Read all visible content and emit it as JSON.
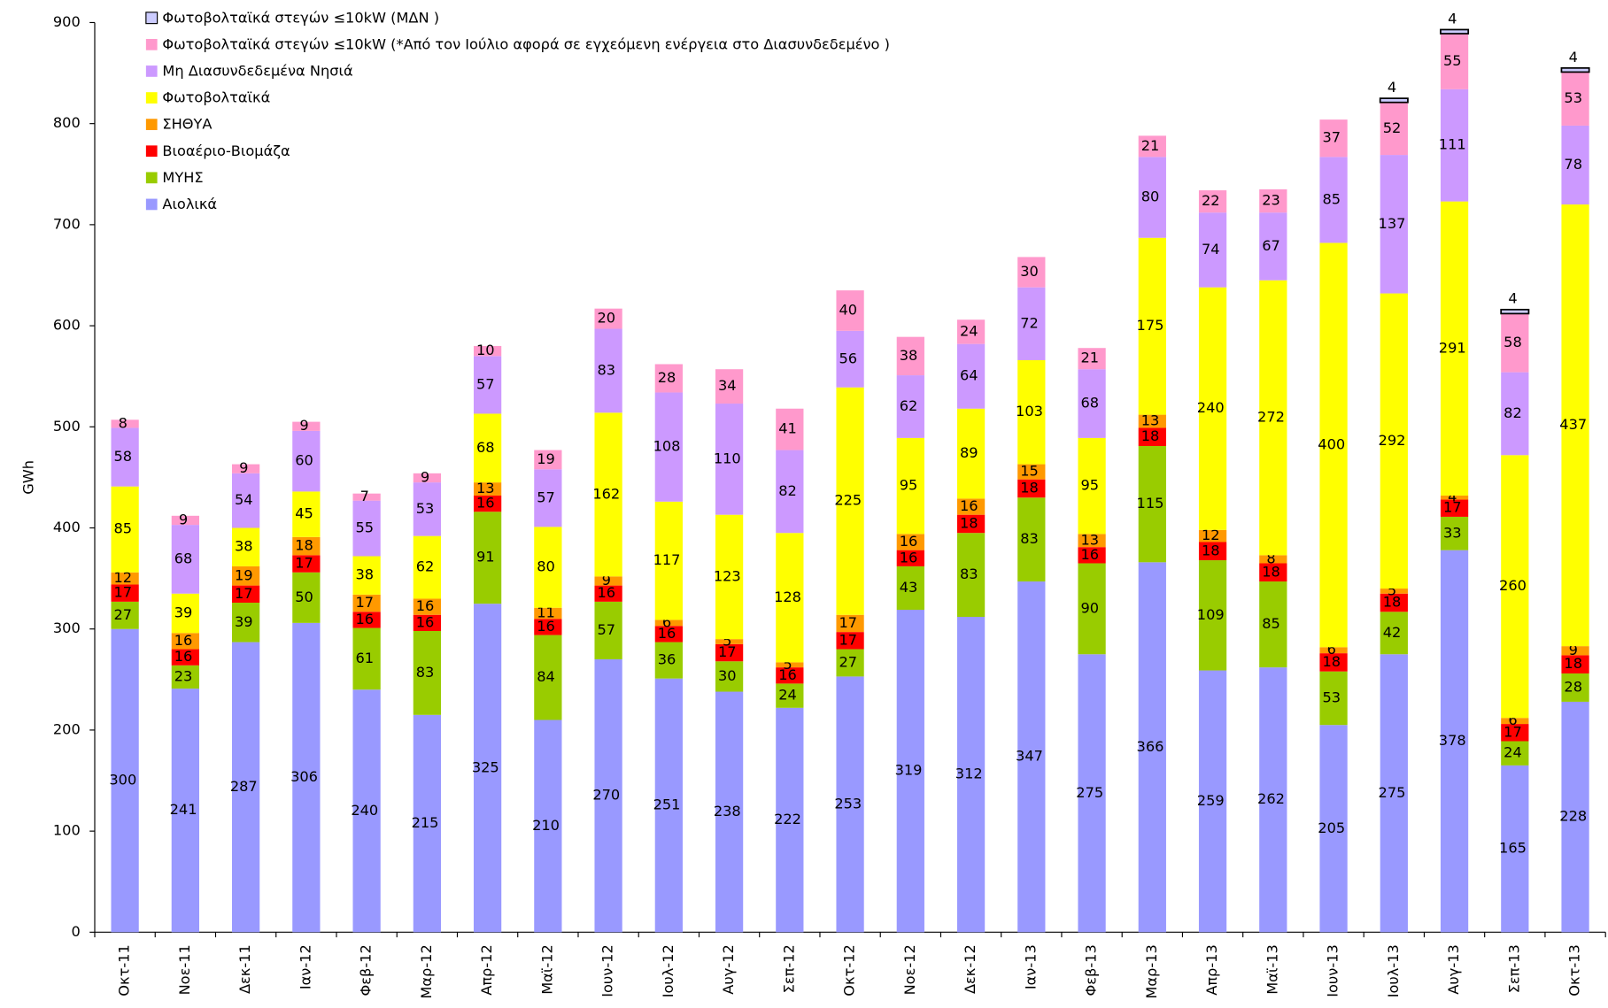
{
  "chart_data": {
    "type": "stacked-bar",
    "y_label": "GWh",
    "categories": [
      "Οκτ-11",
      "Νοε-11",
      "Δεκ-11",
      "Ιαν-12",
      "Φεβ-12",
      "Μαρ-12",
      "Απρ-12",
      "Μαϊ-12",
      "Ιουν-12",
      "Ιουλ-12",
      "Αυγ-12",
      "Σεπ-12",
      "Οκτ-12",
      "Νοε-12",
      "Δεκ-12",
      "Ιαν-13",
      "Φεβ-13",
      "Μαρ-13",
      "Απρ-13",
      "Μαϊ-13",
      "Ιουν-13",
      "Ιουλ-13",
      "Αυγ-13",
      "Σεπ-13",
      "Οκτ-13"
    ],
    "series": [
      {
        "name": "Αιολικά",
        "color": "#9999ff",
        "values": [
          300,
          241,
          287,
          306,
          240,
          215,
          325,
          210,
          270,
          251,
          238,
          222,
          253,
          319,
          312,
          347,
          275,
          366,
          259,
          262,
          205,
          275,
          378,
          165,
          228
        ]
      },
      {
        "name": "ΜΥΗΣ",
        "color": "#99cc00",
        "values": [
          27,
          23,
          39,
          50,
          61,
          83,
          91,
          84,
          57,
          36,
          30,
          24,
          27,
          43,
          83,
          83,
          90,
          115,
          109,
          85,
          53,
          42,
          33,
          24,
          28
        ]
      },
      {
        "name": "Βιοαέριο-Βιομάζα",
        "color": "#ff0000",
        "values": [
          17,
          16,
          17,
          17,
          16,
          16,
          16,
          16,
          16,
          16,
          17,
          16,
          17,
          16,
          18,
          18,
          16,
          18,
          18,
          18,
          18,
          18,
          17,
          17,
          18
        ]
      },
      {
        "name": "ΣΗΘΥΑ",
        "color": "#ff9900",
        "values": [
          12,
          16,
          19,
          18,
          17,
          16,
          13,
          11,
          9,
          6,
          5,
          5,
          17,
          16,
          16,
          15,
          13,
          13,
          12,
          8,
          6,
          5,
          4,
          6,
          9
        ]
      },
      {
        "name": "Φωτοβολταϊκά",
        "color": "#ffff00",
        "values": [
          85,
          39,
          38,
          45,
          38,
          62,
          68,
          80,
          162,
          117,
          123,
          128,
          225,
          95,
          89,
          103,
          95,
          175,
          240,
          272,
          400,
          292,
          291,
          260,
          437
        ]
      },
      {
        "name": "Μη Διασυνδεδεμένα Νησιά",
        "color": "#cc99ff",
        "values": [
          58,
          68,
          54,
          60,
          55,
          53,
          57,
          57,
          83,
          108,
          110,
          82,
          56,
          62,
          64,
          72,
          68,
          80,
          74,
          67,
          85,
          137,
          111,
          82,
          78
        ]
      },
      {
        "name": "Φωτοβολταϊκά στεγών ≤10kW (*Από τον Ιούλιο αφορά σε εγχεόμενη ενέργεια στο Διασυνδεδεμένο )",
        "color": "#ff99cc",
        "values": [
          8,
          9,
          9,
          9,
          7,
          9,
          10,
          19,
          20,
          28,
          34,
          41,
          40,
          38,
          24,
          30,
          21,
          21,
          22,
          23,
          37,
          52,
          55,
          58,
          53
        ]
      },
      {
        "name": "Φωτοβολταϊκά στεγών ≤10kW (ΜΔΝ )",
        "color": "#ccccff",
        "values": [
          null,
          null,
          null,
          null,
          null,
          null,
          null,
          null,
          null,
          null,
          null,
          null,
          null,
          null,
          null,
          null,
          null,
          null,
          null,
          null,
          null,
          4,
          4,
          4,
          4
        ]
      }
    ],
    "ylim": [
      0,
      900
    ],
    "yticks": [
      0,
      100,
      200,
      300,
      400,
      500,
      600,
      700,
      800,
      900
    ]
  }
}
